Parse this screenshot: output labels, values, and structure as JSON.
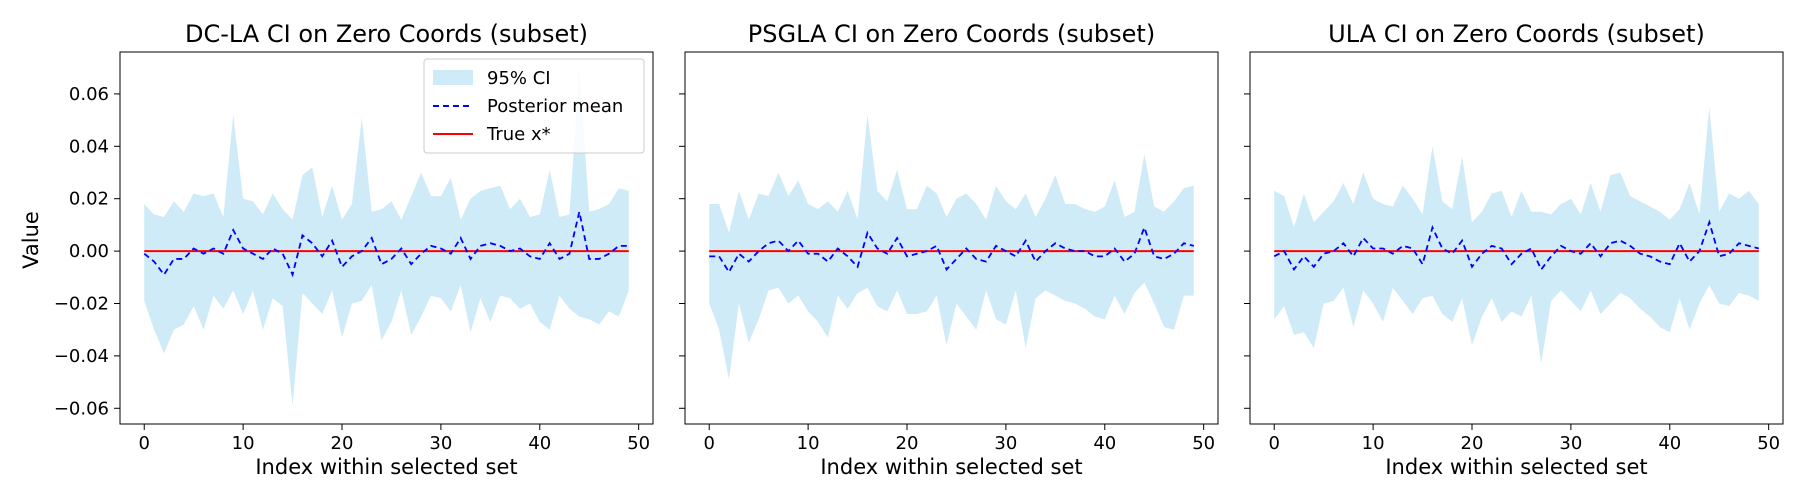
{
  "colors": {
    "ci_fill": "#87ceeb",
    "mean_line": "#0000ff",
    "true_line": "#ff0000",
    "axes": "#000000"
  },
  "shared": {
    "ylabel": "Value",
    "xlabel": "Index within selected set",
    "ylim": [
      -0.066,
      0.076
    ],
    "xlim": [
      -2.45,
      51.45
    ],
    "yticks": [
      -0.06,
      -0.04,
      -0.02,
      0.0,
      0.02,
      0.04,
      0.06
    ],
    "ytick_labels": [
      "−0.06",
      "−0.04",
      "−0.02",
      "0.00",
      "0.02",
      "0.04",
      "0.06"
    ],
    "xticks": [
      0,
      10,
      20,
      30,
      40,
      50
    ],
    "xtick_labels": [
      "0",
      "10",
      "20",
      "30",
      "40",
      "50"
    ]
  },
  "legend": {
    "placement": "top-right of first panel",
    "entries": [
      "95% CI",
      "Posterior mean",
      "True x*"
    ]
  },
  "chart_data": [
    {
      "type": "area",
      "title": "DC-LA CI on Zero Coords (subset)",
      "xlabel": "Index within selected set",
      "ylabel": "Value",
      "x": [
        0,
        1,
        2,
        3,
        4,
        5,
        6,
        7,
        8,
        9,
        10,
        11,
        12,
        13,
        14,
        15,
        16,
        17,
        18,
        19,
        20,
        21,
        22,
        23,
        24,
        25,
        26,
        27,
        28,
        29,
        30,
        31,
        32,
        33,
        34,
        35,
        36,
        37,
        38,
        39,
        40,
        41,
        42,
        43,
        44,
        45,
        46,
        47,
        48,
        49
      ],
      "series": [
        {
          "name": "95% CI",
          "upper": [
            0.018,
            0.014,
            0.013,
            0.019,
            0.015,
            0.022,
            0.021,
            0.022,
            0.013,
            0.052,
            0.02,
            0.019,
            0.014,
            0.022,
            0.016,
            0.012,
            0.029,
            0.032,
            0.013,
            0.025,
            0.012,
            0.018,
            0.051,
            0.015,
            0.016,
            0.019,
            0.012,
            0.021,
            0.03,
            0.021,
            0.021,
            0.028,
            0.012,
            0.02,
            0.023,
            0.024,
            0.025,
            0.016,
            0.02,
            0.013,
            0.014,
            0.031,
            0.013,
            0.014,
            0.07,
            0.015,
            0.016,
            0.018,
            0.024,
            0.023
          ],
          "lower": [
            -0.019,
            -0.03,
            -0.039,
            -0.03,
            -0.028,
            -0.021,
            -0.03,
            -0.017,
            -0.022,
            -0.015,
            -0.024,
            -0.015,
            -0.03,
            -0.018,
            -0.021,
            -0.059,
            -0.016,
            -0.02,
            -0.024,
            -0.015,
            -0.033,
            -0.02,
            -0.019,
            -0.013,
            -0.034,
            -0.027,
            -0.015,
            -0.032,
            -0.025,
            -0.017,
            -0.018,
            -0.023,
            -0.013,
            -0.031,
            -0.018,
            -0.027,
            -0.017,
            -0.018,
            -0.022,
            -0.02,
            -0.027,
            -0.03,
            -0.017,
            -0.022,
            -0.025,
            -0.026,
            -0.028,
            -0.023,
            -0.025,
            -0.015
          ]
        },
        {
          "name": "Posterior mean",
          "values": [
            -0.001,
            -0.004,
            -0.009,
            -0.003,
            -0.003,
            0.001,
            -0.001,
            0.001,
            -0.001,
            0.008,
            0.001,
            -0.001,
            -0.003,
            0.001,
            -0.001,
            -0.009,
            0.006,
            0.003,
            -0.002,
            0.004,
            -0.006,
            -0.002,
            0.0,
            0.005,
            -0.005,
            -0.003,
            0.001,
            -0.005,
            -0.001,
            0.002,
            0.001,
            -0.001,
            0.005,
            -0.003,
            0.002,
            0.003,
            0.002,
            0.0,
            0.001,
            -0.002,
            -0.003,
            0.003,
            -0.003,
            -0.001,
            0.015,
            -0.003,
            -0.003,
            -0.001,
            0.002,
            0.002
          ]
        },
        {
          "name": "True x*",
          "values": [
            0,
            0,
            0,
            0,
            0,
            0,
            0,
            0,
            0,
            0,
            0,
            0,
            0,
            0,
            0,
            0,
            0,
            0,
            0,
            0,
            0,
            0,
            0,
            0,
            0,
            0,
            0,
            0,
            0,
            0,
            0,
            0,
            0,
            0,
            0,
            0,
            0,
            0,
            0,
            0,
            0,
            0,
            0,
            0,
            0,
            0,
            0,
            0,
            0,
            0
          ]
        }
      ]
    },
    {
      "type": "area",
      "title": "PSGLA CI on Zero Coords (subset)",
      "xlabel": "Index within selected set",
      "ylabel": "",
      "x": [
        0,
        1,
        2,
        3,
        4,
        5,
        6,
        7,
        8,
        9,
        10,
        11,
        12,
        13,
        14,
        15,
        16,
        17,
        18,
        19,
        20,
        21,
        22,
        23,
        24,
        25,
        26,
        27,
        28,
        29,
        30,
        31,
        32,
        33,
        34,
        35,
        36,
        37,
        38,
        39,
        40,
        41,
        42,
        43,
        44,
        45,
        46,
        47,
        48,
        49
      ],
      "series": [
        {
          "name": "95% CI",
          "upper": [
            0.018,
            0.018,
            0.007,
            0.023,
            0.012,
            0.022,
            0.021,
            0.03,
            0.021,
            0.027,
            0.018,
            0.016,
            0.019,
            0.015,
            0.023,
            0.012,
            0.052,
            0.023,
            0.019,
            0.031,
            0.016,
            0.016,
            0.025,
            0.022,
            0.013,
            0.02,
            0.022,
            0.018,
            0.012,
            0.025,
            0.019,
            0.016,
            0.022,
            0.013,
            0.02,
            0.029,
            0.018,
            0.018,
            0.016,
            0.015,
            0.017,
            0.027,
            0.013,
            0.015,
            0.037,
            0.017,
            0.015,
            0.019,
            0.024,
            0.025
          ],
          "lower": [
            -0.02,
            -0.03,
            -0.049,
            -0.02,
            -0.035,
            -0.026,
            -0.015,
            -0.014,
            -0.02,
            -0.017,
            -0.023,
            -0.027,
            -0.033,
            -0.017,
            -0.022,
            -0.016,
            -0.014,
            -0.021,
            -0.023,
            -0.015,
            -0.024,
            -0.024,
            -0.023,
            -0.017,
            -0.036,
            -0.02,
            -0.025,
            -0.03,
            -0.015,
            -0.026,
            -0.028,
            -0.015,
            -0.037,
            -0.018,
            -0.015,
            -0.017,
            -0.019,
            -0.02,
            -0.022,
            -0.025,
            -0.026,
            -0.017,
            -0.024,
            -0.016,
            -0.012,
            -0.02,
            -0.029,
            -0.03,
            -0.017,
            -0.017
          ]
        },
        {
          "name": "Posterior mean",
          "values": [
            -0.002,
            -0.002,
            -0.008,
            -0.001,
            -0.004,
            0.0,
            0.003,
            0.004,
            0.0,
            0.004,
            -0.001,
            -0.001,
            -0.004,
            0.001,
            -0.002,
            -0.006,
            0.007,
            0.001,
            -0.001,
            0.005,
            -0.002,
            -0.001,
            0.0,
            0.002,
            -0.007,
            -0.003,
            0.001,
            -0.003,
            -0.004,
            0.002,
            0.0,
            -0.002,
            0.004,
            -0.004,
            0.0,
            0.003,
            0.001,
            0.0,
            0.0,
            -0.002,
            -0.002,
            0.001,
            -0.004,
            -0.001,
            0.009,
            -0.002,
            -0.003,
            -0.001,
            0.003,
            0.002
          ]
        },
        {
          "name": "True x*",
          "values": [
            0,
            0,
            0,
            0,
            0,
            0,
            0,
            0,
            0,
            0,
            0,
            0,
            0,
            0,
            0,
            0,
            0,
            0,
            0,
            0,
            0,
            0,
            0,
            0,
            0,
            0,
            0,
            0,
            0,
            0,
            0,
            0,
            0,
            0,
            0,
            0,
            0,
            0,
            0,
            0,
            0,
            0,
            0,
            0,
            0,
            0,
            0,
            0,
            0,
            0
          ]
        }
      ]
    },
    {
      "type": "area",
      "title": "ULA CI on Zero Coords (subset)",
      "xlabel": "Index within selected set",
      "ylabel": "",
      "x": [
        0,
        1,
        2,
        3,
        4,
        5,
        6,
        7,
        8,
        9,
        10,
        11,
        12,
        13,
        14,
        15,
        16,
        17,
        18,
        19,
        20,
        21,
        22,
        23,
        24,
        25,
        26,
        27,
        28,
        29,
        30,
        31,
        32,
        33,
        34,
        35,
        36,
        37,
        38,
        39,
        40,
        41,
        42,
        43,
        44,
        45,
        46,
        47,
        48,
        49
      ],
      "series": [
        {
          "name": "95% CI",
          "upper": [
            0.023,
            0.021,
            0.009,
            0.022,
            0.011,
            0.015,
            0.019,
            0.026,
            0.018,
            0.03,
            0.02,
            0.018,
            0.017,
            0.025,
            0.02,
            0.014,
            0.04,
            0.019,
            0.016,
            0.036,
            0.011,
            0.015,
            0.022,
            0.023,
            0.013,
            0.023,
            0.015,
            0.015,
            0.014,
            0.018,
            0.02,
            0.014,
            0.026,
            0.015,
            0.029,
            0.03,
            0.021,
            0.019,
            0.017,
            0.015,
            0.012,
            0.016,
            0.026,
            0.014,
            0.055,
            0.015,
            0.022,
            0.02,
            0.023,
            0.018
          ],
          "lower": [
            -0.026,
            -0.021,
            -0.032,
            -0.031,
            -0.037,
            -0.02,
            -0.019,
            -0.014,
            -0.029,
            -0.015,
            -0.02,
            -0.027,
            -0.014,
            -0.019,
            -0.024,
            -0.018,
            -0.017,
            -0.024,
            -0.027,
            -0.018,
            -0.036,
            -0.025,
            -0.018,
            -0.027,
            -0.023,
            -0.025,
            -0.017,
            -0.043,
            -0.019,
            -0.015,
            -0.019,
            -0.023,
            -0.015,
            -0.024,
            -0.02,
            -0.016,
            -0.018,
            -0.022,
            -0.025,
            -0.029,
            -0.031,
            -0.018,
            -0.03,
            -0.02,
            -0.013,
            -0.02,
            -0.021,
            -0.016,
            -0.017,
            -0.019
          ]
        },
        {
          "name": "Posterior mean",
          "values": [
            -0.002,
            0.0,
            -0.007,
            -0.002,
            -0.006,
            -0.001,
            0.0,
            0.003,
            -0.002,
            0.005,
            0.001,
            0.001,
            -0.001,
            0.002,
            0.001,
            -0.005,
            0.009,
            0.001,
            -0.001,
            0.004,
            -0.006,
            -0.001,
            0.002,
            0.001,
            -0.005,
            -0.001,
            0.001,
            -0.007,
            -0.002,
            0.002,
            0.0,
            -0.001,
            0.003,
            -0.002,
            0.003,
            0.004,
            0.002,
            -0.001,
            -0.002,
            -0.004,
            -0.005,
            0.003,
            -0.004,
            0.0,
            0.011,
            -0.002,
            -0.001,
            0.003,
            0.002,
            0.001
          ]
        },
        {
          "name": "True x*",
          "values": [
            0,
            0,
            0,
            0,
            0,
            0,
            0,
            0,
            0,
            0,
            0,
            0,
            0,
            0,
            0,
            0,
            0,
            0,
            0,
            0,
            0,
            0,
            0,
            0,
            0,
            0,
            0,
            0,
            0,
            0,
            0,
            0,
            0,
            0,
            0,
            0,
            0,
            0,
            0,
            0,
            0,
            0,
            0,
            0,
            0,
            0,
            0,
            0,
            0,
            0
          ]
        }
      ]
    }
  ]
}
